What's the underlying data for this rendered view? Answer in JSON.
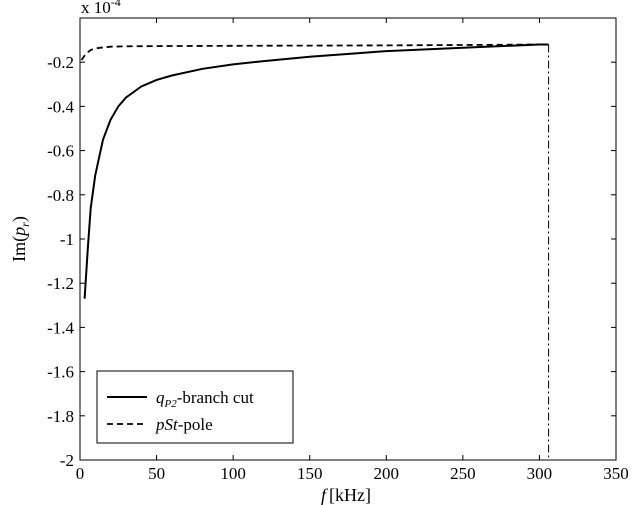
{
  "chart_data": {
    "type": "line",
    "title": "",
    "xlabel": "f [kHz]",
    "xlabel_var": "f",
    "xlabel_unit": "[kHz]",
    "ylabel_prefix": "Im(",
    "ylabel_var": "p",
    "ylabel_sub": "r",
    "ylabel_suffix": ")",
    "y_multiplier": "x 10",
    "y_multiplier_exp": "-4",
    "xlim": [
      0,
      350
    ],
    "ylim": [
      -2,
      0
    ],
    "xticks": [
      0,
      50,
      100,
      150,
      200,
      250,
      300,
      350
    ],
    "yticks": [
      -0.2,
      -0.4,
      -0.6,
      -0.8,
      -1,
      -1.2,
      -1.4,
      -1.6,
      -1.8,
      -2
    ],
    "grid": false,
    "legend_position": "bottom-left",
    "cutoff_x": 306,
    "series": [
      {
        "name_var": "q",
        "name_sub": "P2",
        "name_rest": "-branch cut",
        "style": "solid",
        "x": [
          3,
          5,
          7,
          10,
          15,
          20,
          25,
          30,
          40,
          50,
          60,
          80,
          100,
          120,
          150,
          180,
          200,
          250,
          300,
          306
        ],
        "y": [
          -1.27,
          -1.05,
          -0.86,
          -0.71,
          -0.55,
          -0.46,
          -0.4,
          -0.36,
          -0.31,
          -0.28,
          -0.26,
          -0.23,
          -0.21,
          -0.195,
          -0.175,
          -0.16,
          -0.15,
          -0.135,
          -0.12,
          -0.12
        ]
      },
      {
        "name_var": "pSt",
        "name_rest": "-pole",
        "style": "dashed",
        "x": [
          1,
          3,
          5,
          7,
          10,
          15,
          20,
          30,
          50,
          100,
          150,
          200,
          250,
          300,
          306
        ],
        "y": [
          -0.19,
          -0.17,
          -0.155,
          -0.145,
          -0.138,
          -0.133,
          -0.13,
          -0.128,
          -0.127,
          -0.126,
          -0.125,
          -0.124,
          -0.122,
          -0.12,
          -0.12
        ]
      }
    ]
  }
}
